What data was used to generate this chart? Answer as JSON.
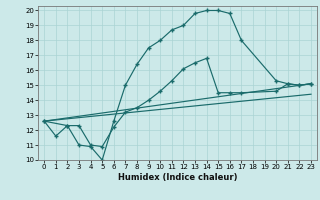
{
  "xlabel": "Humidex (Indice chaleur)",
  "xlim": [
    -0.5,
    23.5
  ],
  "ylim": [
    10,
    20.3
  ],
  "xticks": [
    0,
    1,
    2,
    3,
    4,
    5,
    6,
    7,
    8,
    9,
    10,
    11,
    12,
    13,
    14,
    15,
    16,
    17,
    18,
    19,
    20,
    21,
    22,
    23
  ],
  "yticks": [
    10,
    11,
    12,
    13,
    14,
    15,
    16,
    17,
    18,
    19,
    20
  ],
  "bg_color": "#cce9e9",
  "line_color": "#1a6b6b",
  "grid_color": "#aad4d4",
  "line1_x": [
    0,
    1,
    2,
    3,
    4,
    5,
    6,
    7,
    8,
    9,
    10,
    11,
    12,
    13,
    14,
    15,
    16,
    17,
    20,
    21,
    22,
    23
  ],
  "line1_y": [
    12.6,
    11.6,
    12.3,
    11.0,
    10.9,
    10.0,
    12.6,
    15.0,
    16.4,
    17.5,
    18.0,
    18.7,
    19.0,
    19.8,
    20.0,
    20.0,
    19.8,
    18.0,
    15.3,
    15.1,
    15.0,
    15.1
  ],
  "line2_x": [
    0,
    2,
    3,
    4,
    5,
    6,
    7,
    8,
    9,
    10,
    11,
    12,
    13,
    14,
    15,
    16,
    17,
    20,
    21,
    22,
    23
  ],
  "line2_y": [
    12.6,
    12.3,
    12.3,
    11.0,
    10.9,
    12.2,
    13.2,
    13.5,
    14.0,
    14.6,
    15.3,
    16.1,
    16.5,
    16.8,
    14.5,
    14.5,
    14.5,
    14.6,
    15.1,
    15.0,
    15.1
  ],
  "line3_x": [
    0,
    23
  ],
  "line3_y": [
    12.6,
    15.1
  ],
  "line4_x": [
    0,
    23
  ],
  "line4_y": [
    12.6,
    14.4
  ]
}
